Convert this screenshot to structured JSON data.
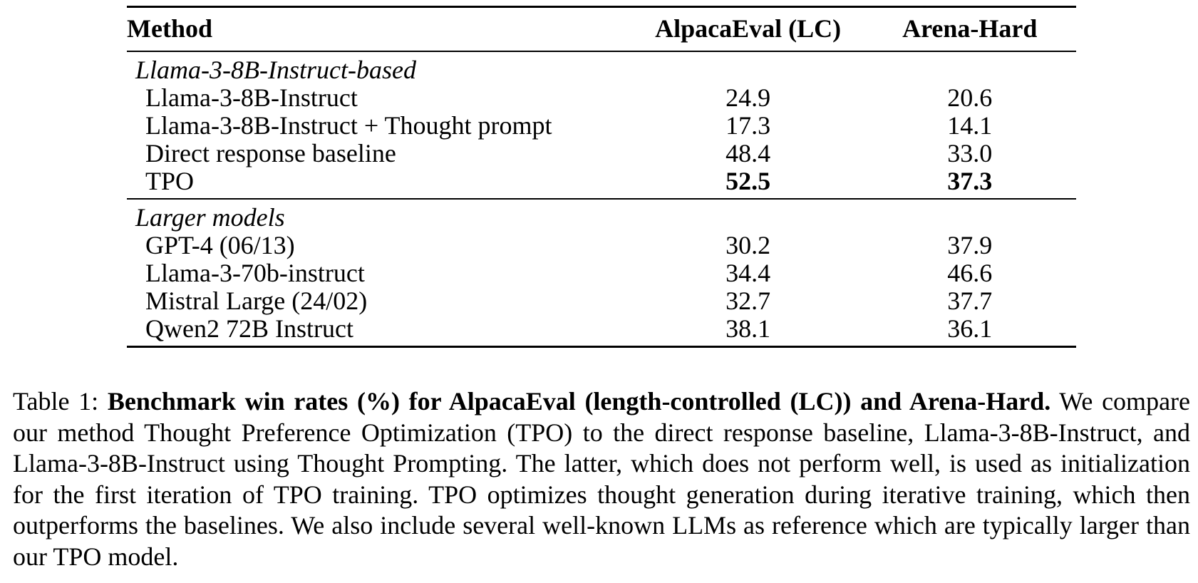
{
  "table": {
    "headers": [
      "Method",
      "AlpacaEval (LC)",
      "Arena-Hard"
    ],
    "groups": [
      {
        "label": "Llama-3-8B-Instruct-based",
        "rows": [
          {
            "method": "Llama-3-8B-Instruct",
            "alpaca": "24.9",
            "arena": "20.6",
            "bold": false
          },
          {
            "method": "Llama-3-8B-Instruct + Thought prompt",
            "alpaca": "17.3",
            "arena": "14.1",
            "bold": false
          },
          {
            "method": "Direct response baseline",
            "alpaca": "48.4",
            "arena": "33.0",
            "bold": false
          },
          {
            "method": "TPO",
            "alpaca": "52.5",
            "arena": "37.3",
            "bold": true
          }
        ]
      },
      {
        "label": "Larger models",
        "rows": [
          {
            "method": "GPT-4 (06/13)",
            "alpaca": "30.2",
            "arena": "37.9",
            "bold": false
          },
          {
            "method": "Llama-3-70b-instruct",
            "alpaca": "34.4",
            "arena": "46.6",
            "bold": false
          },
          {
            "method": "Mistral Large (24/02)",
            "alpaca": "32.7",
            "arena": "37.7",
            "bold": false
          },
          {
            "method": "Qwen2 72B Instruct",
            "alpaca": "38.1",
            "arena": "36.1",
            "bold": false
          }
        ]
      }
    ]
  },
  "caption": {
    "label": "Table 1:",
    "title": "Benchmark win rates (%) for AlpacaEval (length-controlled (LC)) and Arena-Hard.",
    "body": "We compare our method Thought Preference Optimization (TPO) to the direct response baseline, Llama-3-8B-Instruct, and Llama-3-8B-Instruct using Thought Prompting. The latter, which does not perform well, is used as initialization for the first iteration of TPO training. TPO optimizes thought generation during iterative training, which then outperforms the baselines. We also include several well-known LLMs as reference which are typically larger than our TPO model."
  }
}
